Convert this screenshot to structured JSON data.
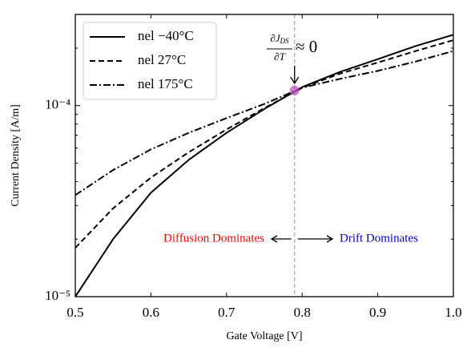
{
  "chart_data": {
    "type": "line",
    "x_label": "Gate Voltage [V]",
    "y_label": "Current Density [A/m]",
    "x": [
      0.5,
      0.55,
      0.6,
      0.65,
      0.7,
      0.75,
      0.8,
      0.85,
      0.9,
      0.95,
      1.0
    ],
    "series": [
      {
        "name": "nel −40°C",
        "color": "#000000",
        "linestyle": "solid",
        "values": [
          1e-05,
          2e-05,
          3.5e-05,
          5.2e-05,
          7.2e-05,
          9.6e-05,
          0.000125,
          0.00015,
          0.000175,
          0.000205,
          0.000235
        ]
      },
      {
        "name": "nel 27°C",
        "color": "#000000",
        "linestyle": "dashed",
        "values": [
          1.8e-05,
          2.9e-05,
          4.2e-05,
          5.7e-05,
          7.5e-05,
          9.7e-05,
          0.000124,
          0.000147,
          0.000168,
          0.000193,
          0.00022
        ]
      },
      {
        "name": "nel 175°C",
        "color": "#000000",
        "linestyle": "dashdot",
        "values": [
          3.4e-05,
          4.6e-05,
          5.9e-05,
          7.2e-05,
          8.6e-05,
          0.000102,
          0.000124,
          0.000138,
          0.000152,
          0.00017,
          0.000193
        ]
      }
    ],
    "xlim": [
      0.5,
      1.0
    ],
    "xticks": [
      0.5,
      0.6,
      0.7,
      0.8,
      0.9,
      {
        "value": 1.0,
        "label": "1.0"
      }
    ],
    "ylim": [
      1e-05,
      0.0003
    ],
    "ylog": true,
    "yticks": [
      {
        "value": 1e-05,
        "label": "10⁻⁵"
      },
      {
        "value": 0.0001,
        "label": "10⁻⁴"
      }
    ],
    "yminorticks": [
      2e-05,
      3e-05,
      4e-05,
      5e-05,
      6e-05,
      7e-05,
      8e-05,
      9e-05,
      0.0002,
      0.0003
    ],
    "legend": "upper left",
    "vline": {
      "x": 0.79,
      "color": "#aaaaaa"
    },
    "marker": {
      "x": 0.79,
      "y": 0.00012,
      "color": "#c050c0"
    },
    "annotation": {
      "numerator": "∂J",
      "numerator_sub": "DS",
      "denominator": "∂T",
      "relation": "≈ 0"
    },
    "left_label": {
      "text": "Diffusion Dominates",
      "color": "#ff0000"
    },
    "right_label": {
      "text": "Drift Dominates",
      "color": "#0000cc"
    }
  }
}
